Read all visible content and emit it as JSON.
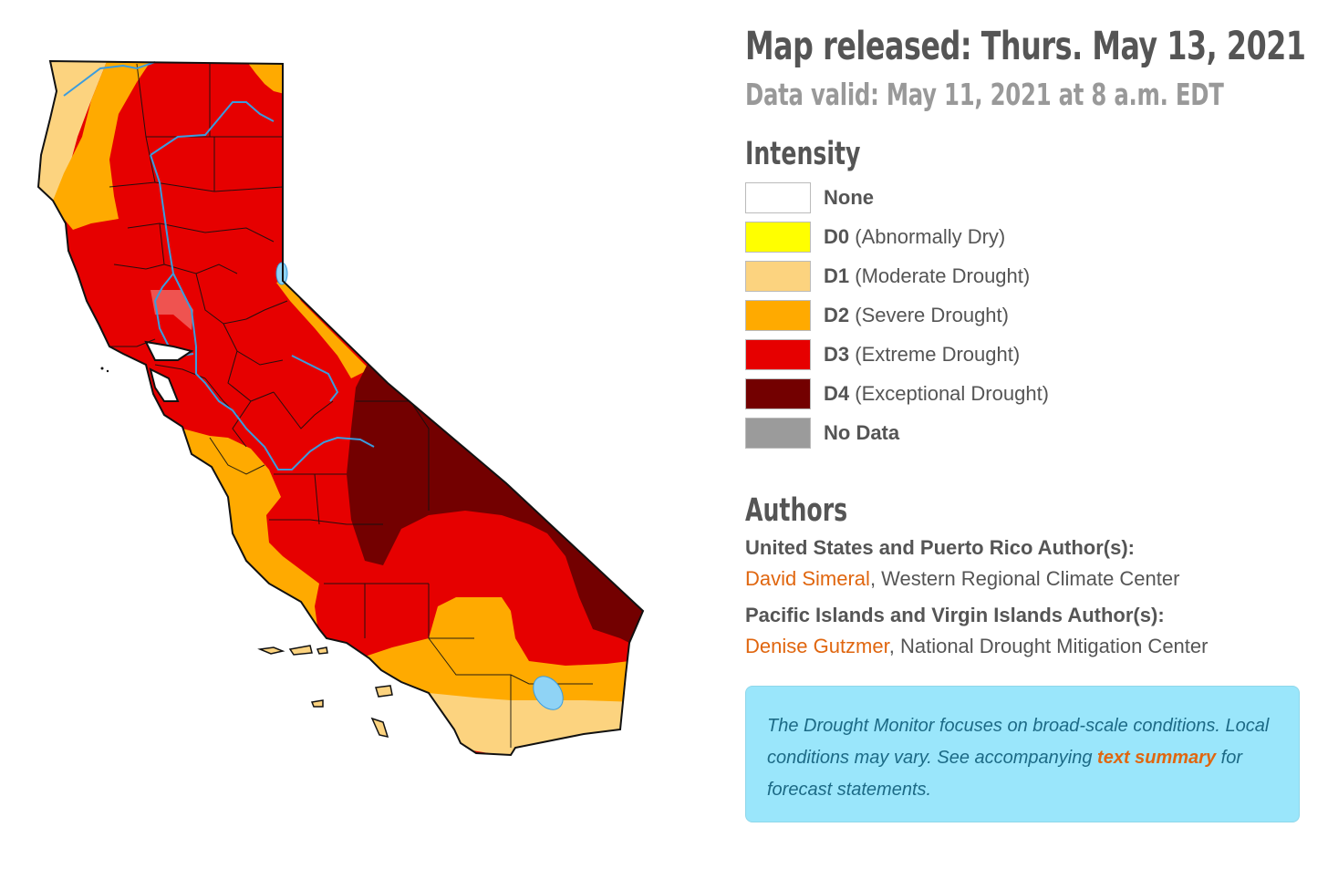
{
  "map": {
    "colors": {
      "none": "#ffffff",
      "d0": "#ffff00",
      "d1": "#fcd37f",
      "d2": "#ffaa00",
      "d3": "#e60000",
      "d4": "#730000",
      "no_data": "#9b9b9b",
      "water": "#8fd3f5",
      "river": "#3a9cde",
      "border": "#111111"
    }
  },
  "header": {
    "released": "Map released: Thurs. May 13, 2021",
    "valid": "Data valid: May 11, 2021 at 8 a.m. EDT"
  },
  "intensity": {
    "heading": "Intensity",
    "items": [
      {
        "code": "None",
        "desc": "",
        "color": "#ffffff"
      },
      {
        "code": "D0",
        "desc": " (Abnormally Dry)",
        "color": "#ffff00"
      },
      {
        "code": "D1",
        "desc": " (Moderate Drought)",
        "color": "#fcd37f"
      },
      {
        "code": "D2",
        "desc": " (Severe Drought)",
        "color": "#ffaa00"
      },
      {
        "code": "D3",
        "desc": " (Extreme Drought)",
        "color": "#e60000"
      },
      {
        "code": "D4",
        "desc": " (Exceptional Drought)",
        "color": "#730000"
      },
      {
        "code": "No Data",
        "desc": "",
        "color": "#9b9b9b"
      }
    ]
  },
  "authors": {
    "heading": "Authors",
    "groups": [
      {
        "title": "United States and Puerto Rico Author(s):",
        "name": "David Simeral",
        "affiliation": ", Western Regional Climate Center"
      },
      {
        "title": "Pacific Islands and Virgin Islands Author(s):",
        "name": "Denise Gutzmer",
        "affiliation": ", National Drought Mitigation Center"
      }
    ]
  },
  "note": {
    "text_before": "The Drought Monitor focuses on broad-scale conditions. Local conditions may vary. See accompanying ",
    "link": "text summary",
    "text_after": " for forecast statements."
  }
}
